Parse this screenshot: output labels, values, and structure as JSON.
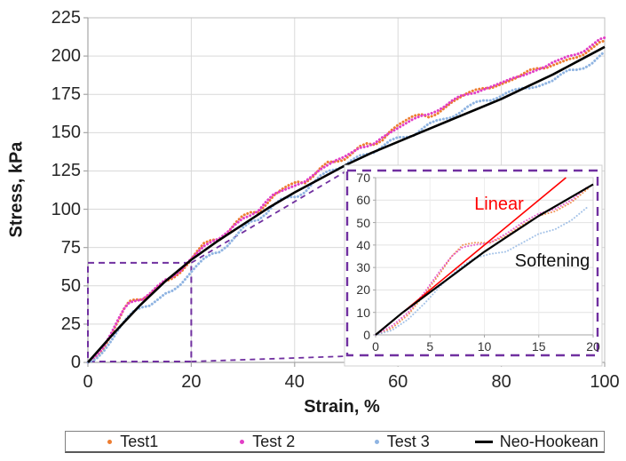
{
  "chart_data": {
    "type": "scatter",
    "title": "",
    "xlabel": "Strain, %",
    "ylabel": "Stress, kPa",
    "xlim": [
      0,
      100
    ],
    "ylim": [
      0,
      225
    ],
    "xticks": [
      0,
      20,
      40,
      60,
      80,
      100
    ],
    "yticks": [
      0,
      25,
      50,
      75,
      100,
      125,
      150,
      175,
      200,
      225
    ],
    "grid": true,
    "colors": {
      "grid": "#D9D9D9",
      "axis": "#A6A6A6",
      "frame": "#BFBFBF",
      "callout": "#7030A0"
    },
    "series": [
      {
        "name": "Test1",
        "color": "#ED7D31",
        "style": "dots",
        "points": [
          [
            0,
            0
          ],
          [
            1.5,
            3
          ],
          [
            3,
            9
          ],
          [
            4.5,
            18
          ],
          [
            6,
            28
          ],
          [
            7,
            35
          ],
          [
            8,
            40
          ],
          [
            9,
            41
          ],
          [
            10.5,
            41
          ],
          [
            12,
            44
          ],
          [
            13.5,
            49
          ],
          [
            15,
            53
          ],
          [
            16.5,
            55
          ],
          [
            18,
            59
          ],
          [
            19.5,
            65
          ],
          [
            21,
            72
          ],
          [
            22.5,
            78
          ],
          [
            24,
            80
          ],
          [
            25.5,
            80
          ],
          [
            27,
            84
          ],
          [
            28.5,
            91
          ],
          [
            30,
            96
          ],
          [
            31.5,
            98
          ],
          [
            33,
            98
          ],
          [
            34.5,
            103
          ],
          [
            36,
            109
          ],
          [
            37.5,
            113
          ],
          [
            39,
            116
          ],
          [
            40.5,
            118
          ],
          [
            42,
            117
          ],
          [
            43.5,
            121
          ],
          [
            45,
            127
          ],
          [
            46.5,
            131
          ],
          [
            48,
            131
          ],
          [
            49.5,
            132
          ],
          [
            51,
            136
          ],
          [
            52.5,
            141
          ],
          [
            54,
            143
          ],
          [
            55.5,
            142
          ],
          [
            57,
            145
          ],
          [
            58.5,
            151
          ],
          [
            60,
            155
          ],
          [
            61.5,
            158
          ],
          [
            63,
            161
          ],
          [
            64.5,
            162
          ],
          [
            66,
            160
          ],
          [
            67.5,
            162
          ],
          [
            69,
            166
          ],
          [
            70.5,
            170
          ],
          [
            72,
            173
          ],
          [
            73.5,
            176
          ],
          [
            75,
            178
          ],
          [
            76.5,
            179
          ],
          [
            78,
            179
          ],
          [
            79.5,
            181
          ],
          [
            81,
            183
          ],
          [
            82.5,
            185
          ],
          [
            84,
            188
          ],
          [
            85.5,
            191
          ],
          [
            87,
            192
          ],
          [
            88.5,
            192
          ],
          [
            90,
            194
          ],
          [
            91.5,
            196
          ],
          [
            93,
            198
          ],
          [
            94.5,
            199
          ],
          [
            96,
            201
          ],
          [
            97.5,
            205
          ],
          [
            99,
            209
          ],
          [
            100,
            210
          ]
        ]
      },
      {
        "name": "Test 2",
        "color": "#E23EC6",
        "style": "dots",
        "points": [
          [
            0,
            0
          ],
          [
            1.5,
            4
          ],
          [
            3,
            10
          ],
          [
            4.5,
            19
          ],
          [
            6,
            29
          ],
          [
            7,
            35
          ],
          [
            8,
            39
          ],
          [
            9,
            40
          ],
          [
            10.5,
            41
          ],
          [
            12,
            45
          ],
          [
            13.5,
            50
          ],
          [
            15,
            54
          ],
          [
            16.5,
            56
          ],
          [
            18,
            60
          ],
          [
            19.5,
            66
          ],
          [
            21,
            71
          ],
          [
            22.5,
            76
          ],
          [
            24,
            79
          ],
          [
            25.5,
            81
          ],
          [
            27,
            85
          ],
          [
            28.5,
            90
          ],
          [
            30,
            94
          ],
          [
            31.5,
            96
          ],
          [
            33,
            99
          ],
          [
            34.5,
            105
          ],
          [
            36,
            110
          ],
          [
            37.5,
            112
          ],
          [
            39,
            114
          ],
          [
            40.5,
            116
          ],
          [
            42,
            118
          ],
          [
            43.5,
            122
          ],
          [
            45,
            126
          ],
          [
            46.5,
            129
          ],
          [
            48,
            132
          ],
          [
            49.5,
            134
          ],
          [
            51,
            137
          ],
          [
            52.5,
            140
          ],
          [
            54,
            141
          ],
          [
            55.5,
            143
          ],
          [
            57,
            147
          ],
          [
            58.5,
            150
          ],
          [
            60,
            153
          ],
          [
            61.5,
            156
          ],
          [
            63,
            159
          ],
          [
            64.5,
            161
          ],
          [
            66,
            162
          ],
          [
            67.5,
            164
          ],
          [
            69,
            167
          ],
          [
            70.5,
            171
          ],
          [
            72,
            174
          ],
          [
            73.5,
            175
          ],
          [
            75,
            176
          ],
          [
            76.5,
            178
          ],
          [
            78,
            180
          ],
          [
            79.5,
            182
          ],
          [
            81,
            184
          ],
          [
            82.5,
            186
          ],
          [
            84,
            187
          ],
          [
            85.5,
            189
          ],
          [
            87,
            191
          ],
          [
            88.5,
            193
          ],
          [
            90,
            196
          ],
          [
            91.5,
            198
          ],
          [
            93,
            200
          ],
          [
            94.5,
            201
          ],
          [
            96,
            203
          ],
          [
            97.5,
            207
          ],
          [
            99,
            211
          ],
          [
            100,
            212
          ]
        ]
      },
      {
        "name": "Test 3",
        "color": "#8FB4E2",
        "style": "dots",
        "points": [
          [
            0,
            0
          ],
          [
            1.5,
            2
          ],
          [
            3,
            7
          ],
          [
            4.5,
            14
          ],
          [
            6,
            22
          ],
          [
            7.5,
            29
          ],
          [
            9,
            34
          ],
          [
            10.5,
            36
          ],
          [
            12,
            37
          ],
          [
            13.5,
            41
          ],
          [
            15,
            45
          ],
          [
            16.5,
            47
          ],
          [
            18,
            51
          ],
          [
            19.5,
            57
          ],
          [
            21,
            63
          ],
          [
            22.5,
            68
          ],
          [
            24,
            71
          ],
          [
            25.5,
            72
          ],
          [
            27,
            76
          ],
          [
            28.5,
            82
          ],
          [
            30,
            88
          ],
          [
            31.5,
            92
          ],
          [
            33,
            93
          ],
          [
            34.5,
            97
          ],
          [
            36,
            103
          ],
          [
            37.5,
            107
          ],
          [
            39,
            108
          ],
          [
            40.5,
            108
          ],
          [
            42,
            111
          ],
          [
            43.5,
            117
          ],
          [
            45,
            122
          ],
          [
            46.5,
            125
          ],
          [
            48,
            126
          ],
          [
            49.5,
            128
          ],
          [
            51,
            132
          ],
          [
            52.5,
            135
          ],
          [
            54,
            136
          ],
          [
            55.5,
            137
          ],
          [
            57,
            141
          ],
          [
            58.5,
            145
          ],
          [
            60,
            147
          ],
          [
            61.5,
            147
          ],
          [
            63,
            148
          ],
          [
            64.5,
            152
          ],
          [
            66,
            156
          ],
          [
            67.5,
            158
          ],
          [
            69,
            159
          ],
          [
            70.5,
            160
          ],
          [
            72,
            163
          ],
          [
            73.5,
            167
          ],
          [
            75,
            170
          ],
          [
            76.5,
            171
          ],
          [
            78,
            171
          ],
          [
            79.5,
            173
          ],
          [
            81,
            176
          ],
          [
            82.5,
            178
          ],
          [
            84,
            179
          ],
          [
            85.5,
            179
          ],
          [
            87,
            180
          ],
          [
            88.5,
            182
          ],
          [
            90,
            184
          ],
          [
            91.5,
            188
          ],
          [
            93,
            191
          ],
          [
            94.5,
            191
          ],
          [
            96,
            192
          ],
          [
            97.5,
            195
          ],
          [
            99,
            200
          ],
          [
            100,
            203
          ]
        ]
      },
      {
        "name": "Neo-Hookean",
        "color": "#000000",
        "style": "line",
        "points": [
          [
            0,
            0
          ],
          [
            5,
            19
          ],
          [
            10,
            37
          ],
          [
            15,
            53
          ],
          [
            20,
            67
          ],
          [
            25,
            79
          ],
          [
            30,
            90
          ],
          [
            35,
            101
          ],
          [
            40,
            111
          ],
          [
            45,
            120
          ],
          [
            50,
            129
          ],
          [
            55,
            137
          ],
          [
            60,
            144
          ],
          [
            65,
            151
          ],
          [
            70,
            158
          ],
          [
            75,
            165
          ],
          [
            80,
            172
          ],
          [
            85,
            180
          ],
          [
            90,
            188
          ],
          [
            95,
            197
          ],
          [
            100,
            206
          ]
        ]
      }
    ],
    "zoom_region": {
      "x": [
        0,
        20
      ],
      "y": [
        0,
        65
      ]
    },
    "inset": {
      "xlim": [
        0,
        20
      ],
      "ylim": [
        0,
        70
      ],
      "xticks": [
        0,
        5,
        10,
        15,
        20
      ],
      "yticks": [
        0,
        10,
        20,
        30,
        40,
        50,
        60,
        70
      ],
      "series": [
        {
          "name": "Linear",
          "color": "#FF0000",
          "style": "line",
          "points": [
            [
              0,
              0
            ],
            [
              17.5,
              70
            ]
          ]
        },
        {
          "name": "Softening",
          "color": "#000000",
          "style": "line",
          "points": [
            [
              0,
              0
            ],
            [
              2.5,
              10
            ],
            [
              5,
              19
            ],
            [
              7.5,
              28
            ],
            [
              10,
              37
            ],
            [
              12.5,
              45
            ],
            [
              15,
              53
            ],
            [
              17.5,
              60
            ],
            [
              20,
              67
            ]
          ]
        }
      ],
      "shows_test_series_below": 20,
      "annotations": [
        {
          "text": "Linear",
          "color": "#FF0000"
        },
        {
          "text": "Softening",
          "color": "#111111"
        }
      ]
    }
  },
  "legend": {
    "items": [
      {
        "label": "Test1",
        "color": "#ED7D31",
        "marker": "dot"
      },
      {
        "label": "Test 2",
        "color": "#E23EC6",
        "marker": "dot"
      },
      {
        "label": "Test 3",
        "color": "#8FB4E2",
        "marker": "dot"
      },
      {
        "label": "Neo-Hookean",
        "color": "#000000",
        "marker": "line"
      }
    ]
  }
}
